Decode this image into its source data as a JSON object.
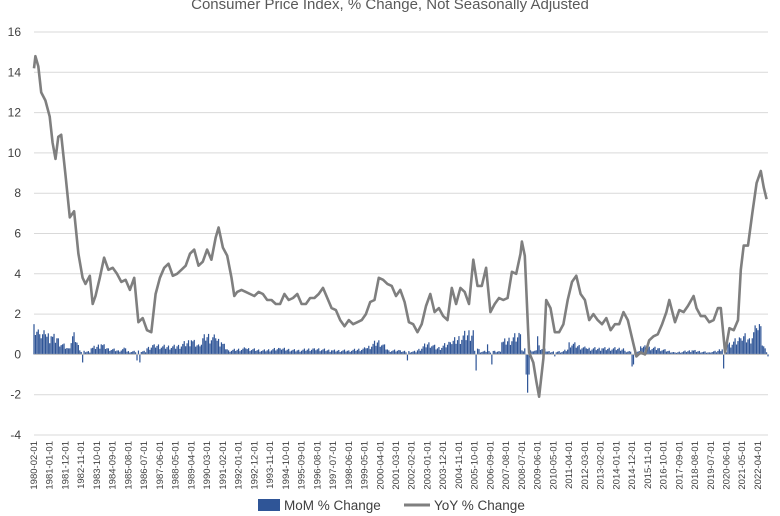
{
  "chart_data": {
    "type": "bar+line",
    "title": "Consumer Price Index, % Change, Not Seasonally Adjusted",
    "xlabel": "",
    "ylabel": "",
    "ylim": [
      -4,
      16
    ],
    "y_ticks": [
      -4,
      -2,
      0,
      2,
      4,
      6,
      8,
      10,
      12,
      14,
      16
    ],
    "grid": true,
    "legend_position": "bottom",
    "x_range": [
      "1980-02-01",
      "2022-11-01"
    ],
    "x_tick_labels": [
      "1980-02-01",
      "1981-01-01",
      "1981-12-01",
      "1982-11-01",
      "1983-10-01",
      "1984-09-01",
      "1985-08-01",
      "1986-07-01",
      "1987-06-01",
      "1988-05-01",
      "1989-04-01",
      "1990-03-01",
      "1991-02-01",
      "1992-01-01",
      "1992-12-01",
      "1993-11-01",
      "1994-10-01",
      "1995-09-01",
      "1996-08-01",
      "1997-07-01",
      "1998-06-01",
      "1999-05-01",
      "2000-04-01",
      "2001-03-01",
      "2002-02-01",
      "2003-01-01",
      "2003-12-01",
      "2004-11-01",
      "2005-10-01",
      "2006-09-01",
      "2007-08-01",
      "2008-07-01",
      "2009-06-01",
      "2010-05-01",
      "2011-04-01",
      "2012-03-01",
      "2013-02-01",
      "2014-01-01",
      "2014-12-01",
      "2015-11-01",
      "2016-10-01",
      "2017-09-01",
      "2018-08-01",
      "2019-07-01",
      "2020-06-01",
      "2021-05-01",
      "2022-04-01"
    ],
    "series": [
      {
        "name": "MoM % Change",
        "type": "bar",
        "color": "#2F5597",
        "points": [
          [
            "1980-02",
            1.5
          ],
          [
            "1980-06",
            1.0
          ],
          [
            "1980-10",
            1.0
          ],
          [
            "1981-02",
            0.9
          ],
          [
            "1981-06",
            0.8
          ],
          [
            "1981-10",
            0.5
          ],
          [
            "1982-02",
            0.3
          ],
          [
            "1982-06",
            1.1
          ],
          [
            "1982-10",
            0.2
          ],
          [
            "1982-12",
            -0.4
          ],
          [
            "1983-06",
            0.3
          ],
          [
            "1984-01",
            0.5
          ],
          [
            "1984-06",
            0.3
          ],
          [
            "1985-01",
            0.2
          ],
          [
            "1985-06",
            0.3
          ],
          [
            "1986-02",
            -0.3
          ],
          [
            "1986-04",
            -0.4
          ],
          [
            "1986-09",
            0.3
          ],
          [
            "1987-02",
            0.5
          ],
          [
            "1987-08",
            0.4
          ],
          [
            "1988-06",
            0.4
          ],
          [
            "1989-04",
            0.7
          ],
          [
            "1989-10",
            0.4
          ],
          [
            "1990-01",
            1.0
          ],
          [
            "1990-09",
            0.8
          ],
          [
            "1991-01",
            0.6
          ],
          [
            "1991-06",
            0.2
          ],
          [
            "1992-06",
            0.3
          ],
          [
            "1993-06",
            0.2
          ],
          [
            "1994-06",
            0.3
          ],
          [
            "1995-06",
            0.2
          ],
          [
            "1996-06",
            0.3
          ],
          [
            "1997-06",
            0.2
          ],
          [
            "1998-06",
            0.2
          ],
          [
            "1999-06",
            0.3
          ],
          [
            "2000-03",
            0.7
          ],
          [
            "2000-10",
            0.2
          ],
          [
            "2001-06",
            0.2
          ],
          [
            "2001-11",
            -0.3
          ],
          [
            "2002-06",
            0.2
          ],
          [
            "2003-02",
            0.6
          ],
          [
            "2003-08",
            0.3
          ],
          [
            "2004-05",
            0.6
          ],
          [
            "2005-09",
            1.2
          ],
          [
            "2005-11",
            -0.8
          ],
          [
            "2006-07",
            0.5
          ],
          [
            "2006-10",
            -0.5
          ],
          [
            "2007-05",
            0.6
          ],
          [
            "2008-06",
            1.0
          ],
          [
            "2008-10",
            -1.0
          ],
          [
            "2008-11",
            -1.9
          ],
          [
            "2008-12",
            -1.0
          ],
          [
            "2009-06",
            0.9
          ],
          [
            "2010-06",
            -0.1
          ],
          [
            "2011-04",
            0.6
          ],
          [
            "2012-04",
            0.3
          ],
          [
            "2013-03",
            0.3
          ],
          [
            "2014-06",
            0.3
          ],
          [
            "2014-12",
            -0.6
          ],
          [
            "2015-01",
            -0.5
          ],
          [
            "2015-06",
            0.4
          ],
          [
            "2016-06",
            0.3
          ],
          [
            "2017-06",
            0.1
          ],
          [
            "2018-06",
            0.2
          ],
          [
            "2019-06",
            0.1
          ],
          [
            "2020-04",
            -0.7
          ],
          [
            "2020-07",
            0.5
          ],
          [
            "2021-04",
            0.8
          ],
          [
            "2021-06",
            0.9
          ],
          [
            "2021-10",
            0.8
          ],
          [
            "2022-03",
            1.3
          ],
          [
            "2022-06",
            1.4
          ],
          [
            "2022-11",
            -0.1
          ]
        ]
      },
      {
        "name": "YoY % Change",
        "type": "line",
        "color": "#7F7F7F",
        "points": [
          [
            "1980-02",
            14.2
          ],
          [
            "1980-03",
            14.8
          ],
          [
            "1980-05",
            14.3
          ],
          [
            "1980-07",
            13.0
          ],
          [
            "1980-10",
            12.6
          ],
          [
            "1981-01",
            11.8
          ],
          [
            "1981-03",
            10.5
          ],
          [
            "1981-05",
            9.7
          ],
          [
            "1981-07",
            10.8
          ],
          [
            "1981-09",
            10.9
          ],
          [
            "1981-12",
            8.9
          ],
          [
            "1982-03",
            6.8
          ],
          [
            "1982-06",
            7.1
          ],
          [
            "1982-09",
            5.0
          ],
          [
            "1982-12",
            3.8
          ],
          [
            "1983-02",
            3.5
          ],
          [
            "1983-05",
            3.9
          ],
          [
            "1983-07",
            2.5
          ],
          [
            "1983-09",
            2.9
          ],
          [
            "1983-12",
            3.8
          ],
          [
            "1984-03",
            4.8
          ],
          [
            "1984-06",
            4.2
          ],
          [
            "1984-09",
            4.3
          ],
          [
            "1984-12",
            4.0
          ],
          [
            "1985-03",
            3.6
          ],
          [
            "1985-06",
            3.7
          ],
          [
            "1985-09",
            3.2
          ],
          [
            "1985-12",
            3.8
          ],
          [
            "1986-03",
            1.6
          ],
          [
            "1986-06",
            1.8
          ],
          [
            "1986-09",
            1.2
          ],
          [
            "1986-12",
            1.1
          ],
          [
            "1987-03",
            3.0
          ],
          [
            "1987-06",
            3.8
          ],
          [
            "1987-09",
            4.3
          ],
          [
            "1987-12",
            4.5
          ],
          [
            "1988-03",
            3.9
          ],
          [
            "1988-06",
            4.0
          ],
          [
            "1988-09",
            4.2
          ],
          [
            "1988-12",
            4.4
          ],
          [
            "1989-03",
            5.0
          ],
          [
            "1989-06",
            5.2
          ],
          [
            "1989-09",
            4.4
          ],
          [
            "1989-12",
            4.6
          ],
          [
            "1990-03",
            5.2
          ],
          [
            "1990-06",
            4.7
          ],
          [
            "1990-09",
            5.8
          ],
          [
            "1990-11",
            6.3
          ],
          [
            "1991-02",
            5.3
          ],
          [
            "1991-05",
            4.9
          ],
          [
            "1991-08",
            3.8
          ],
          [
            "1991-10",
            2.9
          ],
          [
            "1991-12",
            3.1
          ],
          [
            "1992-03",
            3.2
          ],
          [
            "1992-06",
            3.1
          ],
          [
            "1992-09",
            3.0
          ],
          [
            "1992-12",
            2.9
          ],
          [
            "1993-03",
            3.1
          ],
          [
            "1993-06",
            3.0
          ],
          [
            "1993-09",
            2.7
          ],
          [
            "1993-12",
            2.7
          ],
          [
            "1994-03",
            2.5
          ],
          [
            "1994-06",
            2.5
          ],
          [
            "1994-09",
            3.0
          ],
          [
            "1994-12",
            2.7
          ],
          [
            "1995-03",
            2.8
          ],
          [
            "1995-06",
            3.0
          ],
          [
            "1995-09",
            2.5
          ],
          [
            "1995-12",
            2.5
          ],
          [
            "1996-03",
            2.8
          ],
          [
            "1996-06",
            2.8
          ],
          [
            "1996-09",
            3.0
          ],
          [
            "1996-12",
            3.3
          ],
          [
            "1997-03",
            2.8
          ],
          [
            "1997-06",
            2.3
          ],
          [
            "1997-09",
            2.2
          ],
          [
            "1997-12",
            1.7
          ],
          [
            "1998-03",
            1.4
          ],
          [
            "1998-06",
            1.7
          ],
          [
            "1998-09",
            1.5
          ],
          [
            "1998-12",
            1.6
          ],
          [
            "1999-03",
            1.7
          ],
          [
            "1999-06",
            2.0
          ],
          [
            "1999-09",
            2.6
          ],
          [
            "1999-12",
            2.7
          ],
          [
            "2000-03",
            3.8
          ],
          [
            "2000-06",
            3.7
          ],
          [
            "2000-09",
            3.5
          ],
          [
            "2000-12",
            3.4
          ],
          [
            "2001-03",
            2.9
          ],
          [
            "2001-06",
            3.2
          ],
          [
            "2001-09",
            2.6
          ],
          [
            "2001-12",
            1.6
          ],
          [
            "2002-03",
            1.5
          ],
          [
            "2002-06",
            1.1
          ],
          [
            "2002-09",
            1.5
          ],
          [
            "2002-12",
            2.4
          ],
          [
            "2003-03",
            3.0
          ],
          [
            "2003-06",
            2.1
          ],
          [
            "2003-09",
            2.3
          ],
          [
            "2003-12",
            1.9
          ],
          [
            "2004-03",
            1.7
          ],
          [
            "2004-06",
            3.3
          ],
          [
            "2004-09",
            2.5
          ],
          [
            "2004-12",
            3.3
          ],
          [
            "2005-03",
            3.1
          ],
          [
            "2005-06",
            2.5
          ],
          [
            "2005-09",
            4.7
          ],
          [
            "2005-12",
            3.4
          ],
          [
            "2006-03",
            3.4
          ],
          [
            "2006-06",
            4.3
          ],
          [
            "2006-09",
            2.1
          ],
          [
            "2006-12",
            2.5
          ],
          [
            "2007-03",
            2.8
          ],
          [
            "2007-06",
            2.7
          ],
          [
            "2007-09",
            2.8
          ],
          [
            "2007-12",
            4.1
          ],
          [
            "2008-03",
            4.0
          ],
          [
            "2008-06",
            5.0
          ],
          [
            "2008-07",
            5.6
          ],
          [
            "2008-09",
            4.9
          ],
          [
            "2008-12",
            0.1
          ],
          [
            "2009-03",
            -0.4
          ],
          [
            "2009-05",
            -1.3
          ],
          [
            "2009-07",
            -2.1
          ],
          [
            "2009-10",
            -0.2
          ],
          [
            "2009-12",
            2.7
          ],
          [
            "2010-03",
            2.3
          ],
          [
            "2010-06",
            1.1
          ],
          [
            "2010-09",
            1.1
          ],
          [
            "2010-12",
            1.5
          ],
          [
            "2011-03",
            2.7
          ],
          [
            "2011-06",
            3.6
          ],
          [
            "2011-09",
            3.9
          ],
          [
            "2011-12",
            3.0
          ],
          [
            "2012-03",
            2.7
          ],
          [
            "2012-06",
            1.7
          ],
          [
            "2012-09",
            2.0
          ],
          [
            "2012-12",
            1.7
          ],
          [
            "2013-03",
            1.5
          ],
          [
            "2013-06",
            1.8
          ],
          [
            "2013-09",
            1.2
          ],
          [
            "2013-12",
            1.5
          ],
          [
            "2014-03",
            1.5
          ],
          [
            "2014-06",
            2.1
          ],
          [
            "2014-09",
            1.7
          ],
          [
            "2014-12",
            0.8
          ],
          [
            "2015-03",
            -0.1
          ],
          [
            "2015-06",
            0.1
          ],
          [
            "2015-09",
            0.0
          ],
          [
            "2015-12",
            0.7
          ],
          [
            "2016-03",
            0.9
          ],
          [
            "2016-06",
            1.0
          ],
          [
            "2016-09",
            1.5
          ],
          [
            "2016-12",
            2.1
          ],
          [
            "2017-02",
            2.7
          ],
          [
            "2017-06",
            1.6
          ],
          [
            "2017-09",
            2.2
          ],
          [
            "2017-12",
            2.1
          ],
          [
            "2018-03",
            2.4
          ],
          [
            "2018-07",
            2.9
          ],
          [
            "2018-09",
            2.3
          ],
          [
            "2018-12",
            1.9
          ],
          [
            "2019-03",
            1.9
          ],
          [
            "2019-06",
            1.6
          ],
          [
            "2019-09",
            1.7
          ],
          [
            "2019-12",
            2.3
          ],
          [
            "2020-02",
            2.3
          ],
          [
            "2020-05",
            0.1
          ],
          [
            "2020-08",
            1.3
          ],
          [
            "2020-11",
            1.2
          ],
          [
            "2021-02",
            1.7
          ],
          [
            "2021-04",
            4.2
          ],
          [
            "2021-06",
            5.4
          ],
          [
            "2021-09",
            5.4
          ],
          [
            "2021-12",
            7.0
          ],
          [
            "2022-03",
            8.5
          ],
          [
            "2022-06",
            9.1
          ],
          [
            "2022-08",
            8.3
          ],
          [
            "2022-10",
            7.7
          ]
        ]
      }
    ]
  }
}
